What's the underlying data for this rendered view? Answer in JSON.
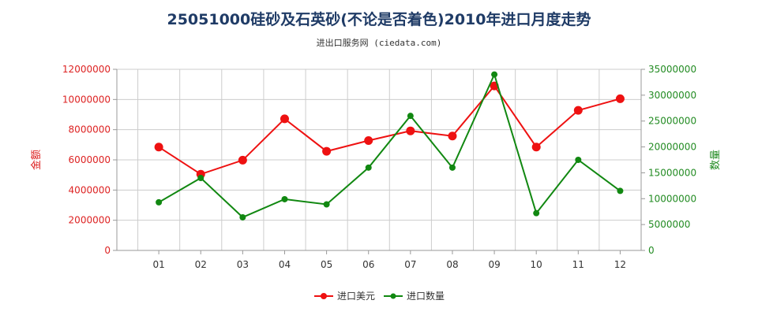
{
  "chart_data": {
    "type": "line",
    "title": "25051000硅砂及石英砂(不论是否着色)2010年进口月度走势",
    "subtitle": "进出口服务网 (ciedata.com)",
    "categories": [
      "01",
      "02",
      "03",
      "04",
      "05",
      "06",
      "07",
      "08",
      "09",
      "10",
      "11",
      "12"
    ],
    "y_left": {
      "label": "金额",
      "ticks": [
        "0",
        "2000000",
        "4000000",
        "6000000",
        "8000000",
        "10000000",
        "12000000"
      ],
      "ylim": [
        0,
        12000000
      ],
      "color": "#dd2222"
    },
    "y_right": {
      "label": "数量",
      "ticks": [
        "0",
        "5000000",
        "10000000",
        "15000000",
        "20000000",
        "25000000",
        "30000000",
        "35000000"
      ],
      "ylim": [
        0,
        35000000
      ],
      "color": "#228b22"
    },
    "series": [
      {
        "name": "进口美元",
        "axis": "left",
        "color": "#ee1111",
        "values": [
          6850000,
          5050000,
          5980000,
          8720000,
          6570000,
          7280000,
          7920000,
          7580000,
          10900000,
          6850000,
          9280000,
          10050000
        ]
      },
      {
        "name": "进口数量",
        "axis": "right",
        "color": "#118811",
        "values": [
          9300000,
          14000000,
          6400000,
          9900000,
          8900000,
          16000000,
          26000000,
          16000000,
          34000000,
          7200000,
          17500000,
          11500000
        ]
      }
    ],
    "legend_position": "bottom-center",
    "grid": true
  }
}
